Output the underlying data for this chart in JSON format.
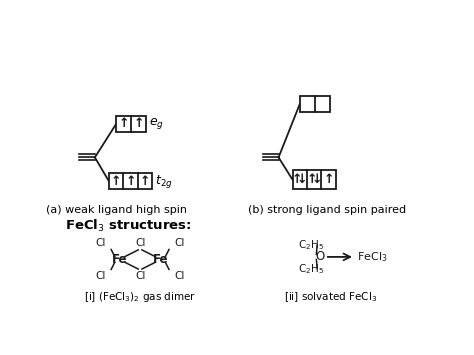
{
  "bg_color": "#ffffff",
  "line_color": "#1a1a1a",
  "title_a": "(a) weak ligand high spin",
  "title_b": "(b) strong ligand spin paired",
  "label_eg": "e$_g$",
  "label_t2g": "t$_{2g}$",
  "fecl3_title": "FeCl$_3$ structures:",
  "label_i": "[i] (FeCl$_3$)$_2$ gas dimer",
  "label_ii": "[ii] solvated FeCl$_3$"
}
